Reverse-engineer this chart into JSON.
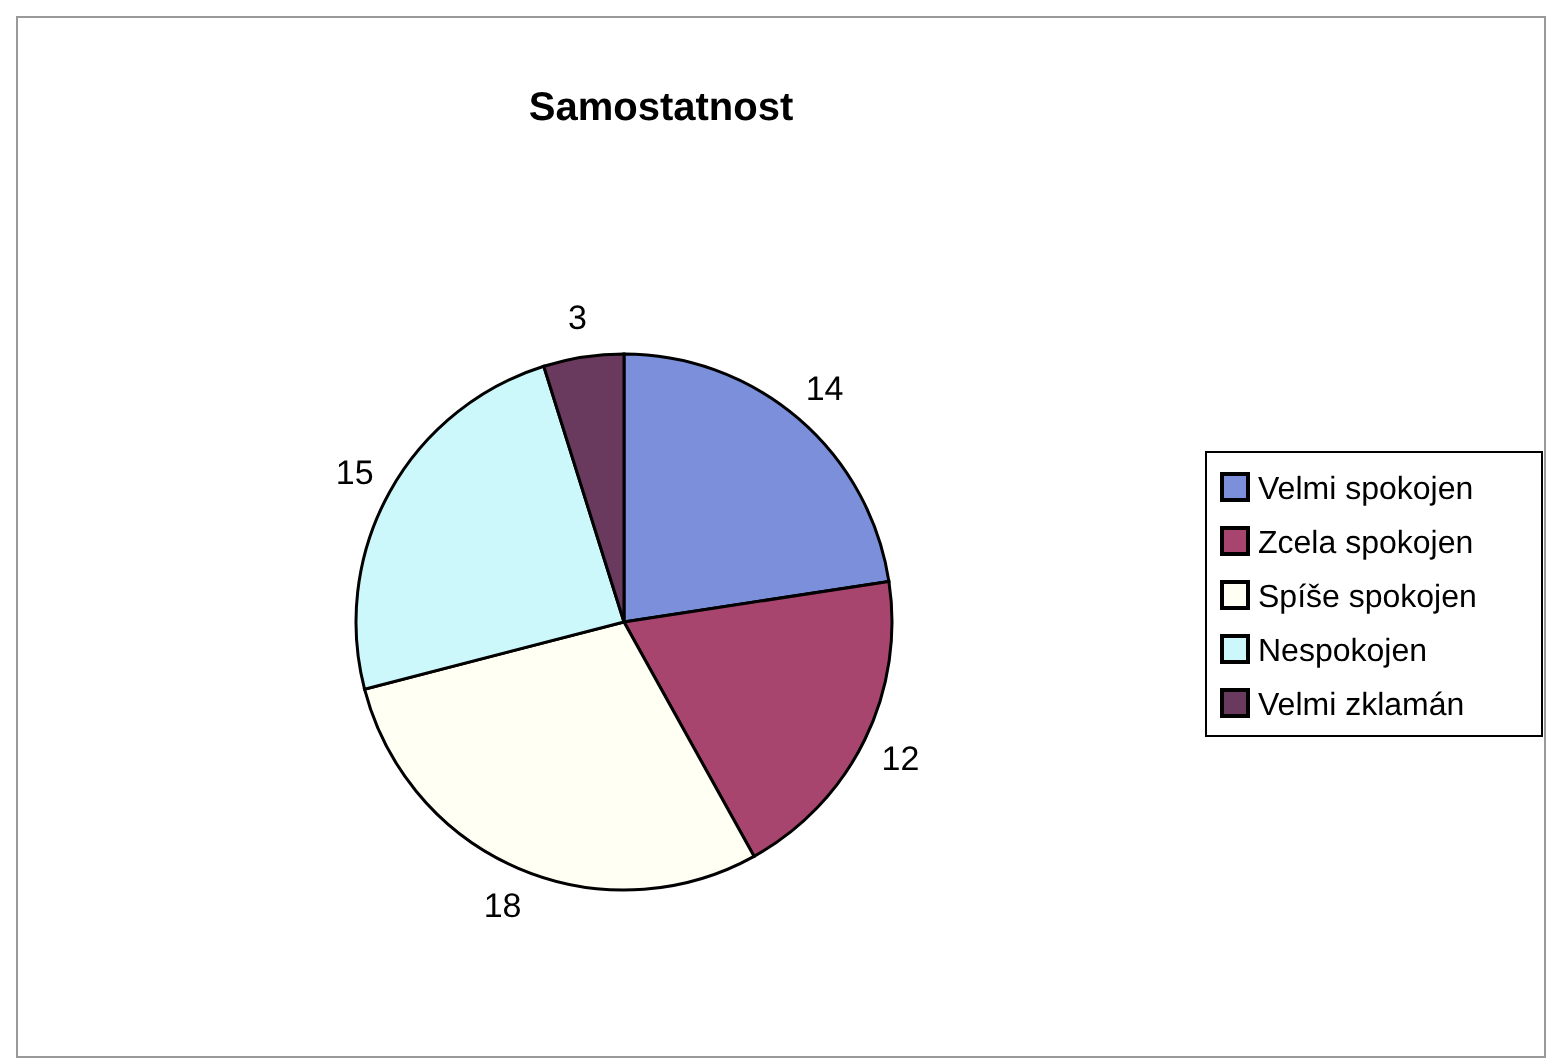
{
  "chart_data": {
    "type": "pie",
    "title": "Samostatnost",
    "categories": [
      "Velmi spokojen",
      "Zcela spokojen",
      "Spíše spokojen",
      "Nespokojen",
      "Velmi zklamán"
    ],
    "values": [
      14,
      12,
      18,
      15,
      3
    ],
    "colors": [
      "#7b8fdb",
      "#a8456e",
      "#fffff4",
      "#ccf8fc",
      "#6a3a5e"
    ],
    "data_labels": true,
    "legend": "right"
  }
}
